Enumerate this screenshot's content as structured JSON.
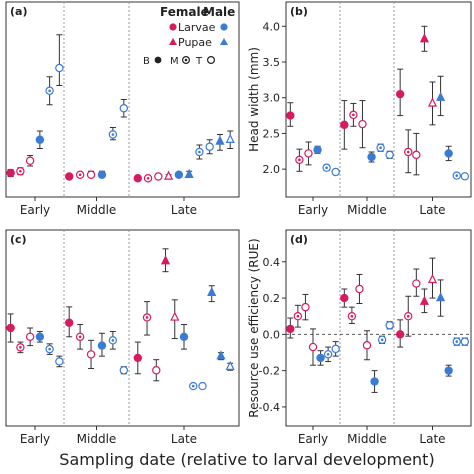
{
  "figure": {
    "x_caption": "Sampling date (relative to larval development)",
    "colors": {
      "female": "#d81b60",
      "male": "#3a7bd5",
      "errorbar": "#333333",
      "divider": "#999999",
      "zero_line": "#555555"
    }
  },
  "legend": {
    "female_label": "Female",
    "male_label": "Male",
    "larvae_label": "Larvae",
    "pupae_label": "Pupae",
    "tissues": [
      {
        "code": "B",
        "style": "solid"
      },
      {
        "code": "M",
        "style": "solid"
      },
      {
        "code": "⊗",
        "style": "cross"
      },
      {
        "code": "T",
        "style": "open"
      }
    ],
    "tissue_text": [
      "B",
      "M",
      "T"
    ]
  },
  "chart_data": [
    {
      "panel": "(a)",
      "type": "scatter",
      "ylabel": "",
      "ylim": [
        0,
        1
      ],
      "y_ticks": [],
      "groups": [
        "Early",
        "Middle",
        "Late"
      ],
      "points": [
        {
          "group": "Early",
          "sex": "female",
          "stage": "larvae",
          "marker": "solid",
          "y": 0.08,
          "lo": 0.06,
          "hi": 0.1
        },
        {
          "group": "Early",
          "sex": "female",
          "stage": "larvae",
          "marker": "cross",
          "y": 0.09,
          "lo": 0.07,
          "hi": 0.11
        },
        {
          "group": "Early",
          "sex": "female",
          "stage": "larvae",
          "marker": "open",
          "y": 0.15,
          "lo": 0.12,
          "hi": 0.18
        },
        {
          "group": "Early",
          "sex": "male",
          "stage": "larvae",
          "marker": "solid",
          "y": 0.27,
          "lo": 0.22,
          "hi": 0.32
        },
        {
          "group": "Early",
          "sex": "male",
          "stage": "larvae",
          "marker": "cross",
          "y": 0.55,
          "lo": 0.47,
          "hi": 0.63
        },
        {
          "group": "Early",
          "sex": "male",
          "stage": "larvae",
          "marker": "open",
          "y": 0.68,
          "lo": 0.58,
          "hi": 0.87
        },
        {
          "group": "Middle",
          "sex": "female",
          "stage": "larvae",
          "marker": "solid",
          "y": 0.06,
          "lo": 0.05,
          "hi": 0.07
        },
        {
          "group": "Middle",
          "sex": "female",
          "stage": "larvae",
          "marker": "cross",
          "y": 0.07,
          "lo": 0.06,
          "hi": 0.08
        },
        {
          "group": "Middle",
          "sex": "female",
          "stage": "larvae",
          "marker": "open",
          "y": 0.07,
          "lo": 0.06,
          "hi": 0.09
        },
        {
          "group": "Middle",
          "sex": "male",
          "stage": "larvae",
          "marker": "solid",
          "y": 0.07,
          "lo": 0.06,
          "hi": 0.09
        },
        {
          "group": "Middle",
          "sex": "male",
          "stage": "larvae",
          "marker": "cross",
          "y": 0.3,
          "lo": 0.27,
          "hi": 0.34
        },
        {
          "group": "Middle",
          "sex": "male",
          "stage": "larvae",
          "marker": "open",
          "y": 0.45,
          "lo": 0.4,
          "hi": 0.5
        },
        {
          "group": "Late",
          "sex": "female",
          "stage": "larvae",
          "marker": "solid",
          "y": 0.05,
          "lo": 0.04,
          "hi": 0.06
        },
        {
          "group": "Late",
          "sex": "female",
          "stage": "larvae",
          "marker": "cross",
          "y": 0.05,
          "lo": 0.04,
          "hi": 0.06
        },
        {
          "group": "Late",
          "sex": "female",
          "stage": "larvae",
          "marker": "open",
          "y": 0.06,
          "lo": 0.05,
          "hi": 0.07
        },
        {
          "group": "Late",
          "sex": "female",
          "stage": "pupae",
          "marker": "open",
          "y": 0.06,
          "lo": 0.05,
          "hi": 0.07
        },
        {
          "group": "Late",
          "sex": "male",
          "stage": "larvae",
          "marker": "solid",
          "y": 0.07,
          "lo": 0.06,
          "hi": 0.08
        },
        {
          "group": "Late",
          "sex": "male",
          "stage": "pupae",
          "marker": "solid",
          "y": 0.07,
          "lo": 0.06,
          "hi": 0.09
        },
        {
          "group": "Late",
          "sex": "male",
          "stage": "larvae",
          "marker": "cross",
          "y": 0.2,
          "lo": 0.16,
          "hi": 0.24
        },
        {
          "group": "Late",
          "sex": "male",
          "stage": "larvae",
          "marker": "open",
          "y": 0.23,
          "lo": 0.19,
          "hi": 0.27
        },
        {
          "group": "Late",
          "sex": "male",
          "stage": "pupae",
          "marker": "cross",
          "y": 0.26,
          "lo": 0.21,
          "hi": 0.3
        },
        {
          "group": "Late",
          "sex": "male",
          "stage": "pupae",
          "marker": "open",
          "y": 0.27,
          "lo": 0.22,
          "hi": 0.32
        }
      ]
    },
    {
      "panel": "(b)",
      "type": "scatter",
      "ylabel": "Head width (mm)",
      "ylim": [
        1.75,
        4.2
      ],
      "y_ticks": [
        2.0,
        2.5,
        3.0,
        3.5,
        4.0
      ],
      "y_tick_labels": [
        "2.0",
        "2.5",
        "3.0",
        "3.5",
        "4.0"
      ],
      "groups": [
        "Early",
        "Middle",
        "Late"
      ],
      "points": [
        {
          "group": "Early",
          "sex": "female",
          "stage": "larvae",
          "marker": "solid",
          "y": 2.75,
          "lo": 2.6,
          "hi": 2.93
        },
        {
          "group": "Early",
          "sex": "female",
          "stage": "larvae",
          "marker": "cross",
          "y": 2.13,
          "lo": 1.97,
          "hi": 2.28
        },
        {
          "group": "Early",
          "sex": "female",
          "stage": "larvae",
          "marker": "open",
          "y": 2.22,
          "lo": 2.06,
          "hi": 2.38
        },
        {
          "group": "Early",
          "sex": "male",
          "stage": "larvae",
          "marker": "solid",
          "y": 2.27,
          "lo": 2.22,
          "hi": 2.32
        },
        {
          "group": "Early",
          "sex": "male",
          "stage": "larvae",
          "marker": "cross",
          "y": 2.02,
          "lo": 1.98,
          "hi": 2.06
        },
        {
          "group": "Early",
          "sex": "male",
          "stage": "larvae",
          "marker": "open",
          "y": 1.96,
          "lo": 1.93,
          "hi": 1.99
        },
        {
          "group": "Middle",
          "sex": "female",
          "stage": "larvae",
          "marker": "solid",
          "y": 2.62,
          "lo": 2.28,
          "hi": 2.96
        },
        {
          "group": "Middle",
          "sex": "female",
          "stage": "larvae",
          "marker": "cross",
          "y": 2.76,
          "lo": 2.6,
          "hi": 2.92
        },
        {
          "group": "Middle",
          "sex": "female",
          "stage": "larvae",
          "marker": "open",
          "y": 2.63,
          "lo": 2.3,
          "hi": 2.96
        },
        {
          "group": "Middle",
          "sex": "male",
          "stage": "larvae",
          "marker": "solid",
          "y": 2.17,
          "lo": 2.1,
          "hi": 2.24
        },
        {
          "group": "Middle",
          "sex": "male",
          "stage": "larvae",
          "marker": "cross",
          "y": 2.3,
          "lo": 2.25,
          "hi": 2.35
        },
        {
          "group": "Middle",
          "sex": "male",
          "stage": "larvae",
          "marker": "open",
          "y": 2.2,
          "lo": 2.15,
          "hi": 2.25
        },
        {
          "group": "Late",
          "sex": "female",
          "stage": "larvae",
          "marker": "solid",
          "y": 3.05,
          "lo": 2.75,
          "hi": 3.4
        },
        {
          "group": "Late",
          "sex": "female",
          "stage": "larvae",
          "marker": "cross",
          "y": 2.24,
          "lo": 1.95,
          "hi": 2.55
        },
        {
          "group": "Late",
          "sex": "female",
          "stage": "larvae",
          "marker": "open",
          "y": 2.2,
          "lo": 1.92,
          "hi": 2.5
        },
        {
          "group": "Late",
          "sex": "female",
          "stage": "pupae",
          "marker": "solid",
          "y": 3.82,
          "lo": 3.65,
          "hi": 4.0
        },
        {
          "group": "Late",
          "sex": "female",
          "stage": "pupae",
          "marker": "open",
          "y": 2.92,
          "lo": 2.62,
          "hi": 3.22
        },
        {
          "group": "Late",
          "sex": "male",
          "stage": "pupae",
          "marker": "solid",
          "y": 3.0,
          "lo": 2.75,
          "hi": 3.3
        },
        {
          "group": "Late",
          "sex": "male",
          "stage": "larvae",
          "marker": "solid",
          "y": 2.22,
          "lo": 2.12,
          "hi": 2.32
        },
        {
          "group": "Late",
          "sex": "male",
          "stage": "larvae",
          "marker": "cross",
          "y": 1.91,
          "lo": 1.89,
          "hi": 1.93
        },
        {
          "group": "Late",
          "sex": "male",
          "stage": "larvae",
          "marker": "open",
          "y": 1.9,
          "lo": 1.88,
          "hi": 1.92
        }
      ]
    },
    {
      "panel": "(c)",
      "type": "scatter",
      "ylabel": "",
      "ylim": [
        0,
        1
      ],
      "y_ticks": [],
      "groups": [
        "Early",
        "Middle",
        "Late"
      ],
      "points": [
        {
          "group": "Early",
          "sex": "female",
          "stage": "larvae",
          "marker": "solid",
          "y": 0.5,
          "lo": 0.42,
          "hi": 0.58
        },
        {
          "group": "Early",
          "sex": "female",
          "stage": "larvae",
          "marker": "cross",
          "y": 0.39,
          "lo": 0.36,
          "hi": 0.42
        },
        {
          "group": "Early",
          "sex": "female",
          "stage": "larvae",
          "marker": "open",
          "y": 0.45,
          "lo": 0.4,
          "hi": 0.5
        },
        {
          "group": "Early",
          "sex": "male",
          "stage": "larvae",
          "marker": "solid",
          "y": 0.45,
          "lo": 0.42,
          "hi": 0.48
        },
        {
          "group": "Early",
          "sex": "male",
          "stage": "larvae",
          "marker": "cross",
          "y": 0.38,
          "lo": 0.35,
          "hi": 0.41
        },
        {
          "group": "Early",
          "sex": "male",
          "stage": "larvae",
          "marker": "open",
          "y": 0.31,
          "lo": 0.28,
          "hi": 0.34
        },
        {
          "group": "Middle",
          "sex": "female",
          "stage": "larvae",
          "marker": "solid",
          "y": 0.53,
          "lo": 0.45,
          "hi": 0.62
        },
        {
          "group": "Middle",
          "sex": "female",
          "stage": "larvae",
          "marker": "cross",
          "y": 0.45,
          "lo": 0.38,
          "hi": 0.52
        },
        {
          "group": "Middle",
          "sex": "female",
          "stage": "larvae",
          "marker": "open",
          "y": 0.35,
          "lo": 0.27,
          "hi": 0.43
        },
        {
          "group": "Middle",
          "sex": "male",
          "stage": "larvae",
          "marker": "solid",
          "y": 0.4,
          "lo": 0.34,
          "hi": 0.47
        },
        {
          "group": "Middle",
          "sex": "male",
          "stage": "larvae",
          "marker": "cross",
          "y": 0.43,
          "lo": 0.38,
          "hi": 0.48
        },
        {
          "group": "Middle",
          "sex": "male",
          "stage": "larvae",
          "marker": "open",
          "y": 0.26,
          "lo": 0.24,
          "hi": 0.28
        },
        {
          "group": "Late",
          "sex": "female",
          "stage": "larvae",
          "marker": "solid",
          "y": 0.33,
          "lo": 0.24,
          "hi": 0.42
        },
        {
          "group": "Late",
          "sex": "female",
          "stage": "larvae",
          "marker": "cross",
          "y": 0.56,
          "lo": 0.46,
          "hi": 0.65
        },
        {
          "group": "Late",
          "sex": "female",
          "stage": "larvae",
          "marker": "open",
          "y": 0.26,
          "lo": 0.2,
          "hi": 0.32
        },
        {
          "group": "Late",
          "sex": "female",
          "stage": "pupae",
          "marker": "solid",
          "y": 0.88,
          "lo": 0.82,
          "hi": 0.95
        },
        {
          "group": "Late",
          "sex": "female",
          "stage": "pupae",
          "marker": "open",
          "y": 0.56,
          "lo": 0.44,
          "hi": 0.66
        },
        {
          "group": "Late",
          "sex": "male",
          "stage": "larvae",
          "marker": "solid",
          "y": 0.45,
          "lo": 0.38,
          "hi": 0.52
        },
        {
          "group": "Late",
          "sex": "male",
          "stage": "larvae",
          "marker": "cross",
          "y": 0.17,
          "lo": 0.16,
          "hi": 0.18
        },
        {
          "group": "Late",
          "sex": "male",
          "stage": "larvae",
          "marker": "open",
          "y": 0.17,
          "lo": 0.16,
          "hi": 0.18
        },
        {
          "group": "Late",
          "sex": "male",
          "stage": "pupae",
          "marker": "solid",
          "y": 0.7,
          "lo": 0.65,
          "hi": 0.74
        },
        {
          "group": "Late",
          "sex": "male",
          "stage": "pupae",
          "marker": "cross",
          "y": 0.34,
          "lo": 0.32,
          "hi": 0.36
        },
        {
          "group": "Late",
          "sex": "male",
          "stage": "pupae",
          "marker": "open",
          "y": 0.28,
          "lo": 0.26,
          "hi": 0.3
        }
      ]
    },
    {
      "panel": "(d)",
      "type": "scatter",
      "ylabel": "Resource use efficiency (RUE)",
      "ylim": [
        -0.45,
        0.52
      ],
      "y_ticks": [
        -0.4,
        -0.2,
        0.0,
        0.2,
        0.4
      ],
      "y_tick_labels": [
        "-0.4",
        "-0.2",
        "0.0",
        "0.2",
        "0.4"
      ],
      "zero_line": true,
      "groups": [
        "Early",
        "Middle",
        "Late"
      ],
      "points": [
        {
          "group": "Early",
          "sex": "female",
          "stage": "larvae",
          "marker": "solid",
          "y": 0.03,
          "lo": -0.02,
          "hi": 0.09
        },
        {
          "group": "Early",
          "sex": "female",
          "stage": "larvae",
          "marker": "cross",
          "y": 0.1,
          "lo": 0.04,
          "hi": 0.16
        },
        {
          "group": "Early",
          "sex": "female",
          "stage": "larvae",
          "marker": "open",
          "y": 0.15,
          "lo": 0.08,
          "hi": 0.22
        },
        {
          "group": "Early",
          "sex": "female",
          "stage": "larvae",
          "marker": "open",
          "y": -0.07,
          "lo": -0.17,
          "hi": 0.03
        },
        {
          "group": "Early",
          "sex": "male",
          "stage": "larvae",
          "marker": "solid",
          "y": -0.13,
          "lo": -0.17,
          "hi": -0.09
        },
        {
          "group": "Early",
          "sex": "male",
          "stage": "larvae",
          "marker": "cross",
          "y": -0.11,
          "lo": -0.15,
          "hi": -0.07
        },
        {
          "group": "Early",
          "sex": "male",
          "stage": "larvae",
          "marker": "open",
          "y": -0.08,
          "lo": -0.12,
          "hi": -0.04
        },
        {
          "group": "Middle",
          "sex": "female",
          "stage": "larvae",
          "marker": "solid",
          "y": 0.2,
          "lo": 0.15,
          "hi": 0.25
        },
        {
          "group": "Middle",
          "sex": "female",
          "stage": "larvae",
          "marker": "cross",
          "y": 0.1,
          "lo": 0.06,
          "hi": 0.15
        },
        {
          "group": "Middle",
          "sex": "female",
          "stage": "larvae",
          "marker": "open",
          "y": 0.25,
          "lo": 0.17,
          "hi": 0.33
        },
        {
          "group": "Middle",
          "sex": "female",
          "stage": "larvae",
          "marker": "open",
          "y": -0.06,
          "lo": -0.14,
          "hi": 0.02
        },
        {
          "group": "Middle",
          "sex": "male",
          "stage": "larvae",
          "marker": "solid",
          "y": -0.26,
          "lo": -0.32,
          "hi": -0.2
        },
        {
          "group": "Middle",
          "sex": "male",
          "stage": "larvae",
          "marker": "cross",
          "y": -0.03,
          "lo": -0.05,
          "hi": -0.01
        },
        {
          "group": "Middle",
          "sex": "male",
          "stage": "larvae",
          "marker": "open",
          "y": 0.05,
          "lo": 0.03,
          "hi": 0.07
        },
        {
          "group": "Late",
          "sex": "female",
          "stage": "larvae",
          "marker": "solid",
          "y": 0.0,
          "lo": -0.07,
          "hi": 0.08
        },
        {
          "group": "Late",
          "sex": "female",
          "stage": "larvae",
          "marker": "cross",
          "y": 0.1,
          "lo": -0.01,
          "hi": 0.21
        },
        {
          "group": "Late",
          "sex": "female",
          "stage": "larvae",
          "marker": "open",
          "y": 0.28,
          "lo": 0.21,
          "hi": 0.36
        },
        {
          "group": "Late",
          "sex": "female",
          "stage": "pupae",
          "marker": "solid",
          "y": 0.18,
          "lo": 0.12,
          "hi": 0.25
        },
        {
          "group": "Late",
          "sex": "female",
          "stage": "pupae",
          "marker": "open",
          "y": 0.3,
          "lo": 0.2,
          "hi": 0.42
        },
        {
          "group": "Late",
          "sex": "male",
          "stage": "pupae",
          "marker": "solid",
          "y": 0.2,
          "lo": 0.1,
          "hi": 0.3
        },
        {
          "group": "Late",
          "sex": "male",
          "stage": "larvae",
          "marker": "solid",
          "y": -0.2,
          "lo": -0.23,
          "hi": -0.17
        },
        {
          "group": "Late",
          "sex": "male",
          "stage": "larvae",
          "marker": "cross",
          "y": -0.04,
          "lo": -0.06,
          "hi": -0.02
        },
        {
          "group": "Late",
          "sex": "male",
          "stage": "larvae",
          "marker": "open",
          "y": -0.04,
          "lo": -0.06,
          "hi": -0.02
        }
      ]
    }
  ]
}
